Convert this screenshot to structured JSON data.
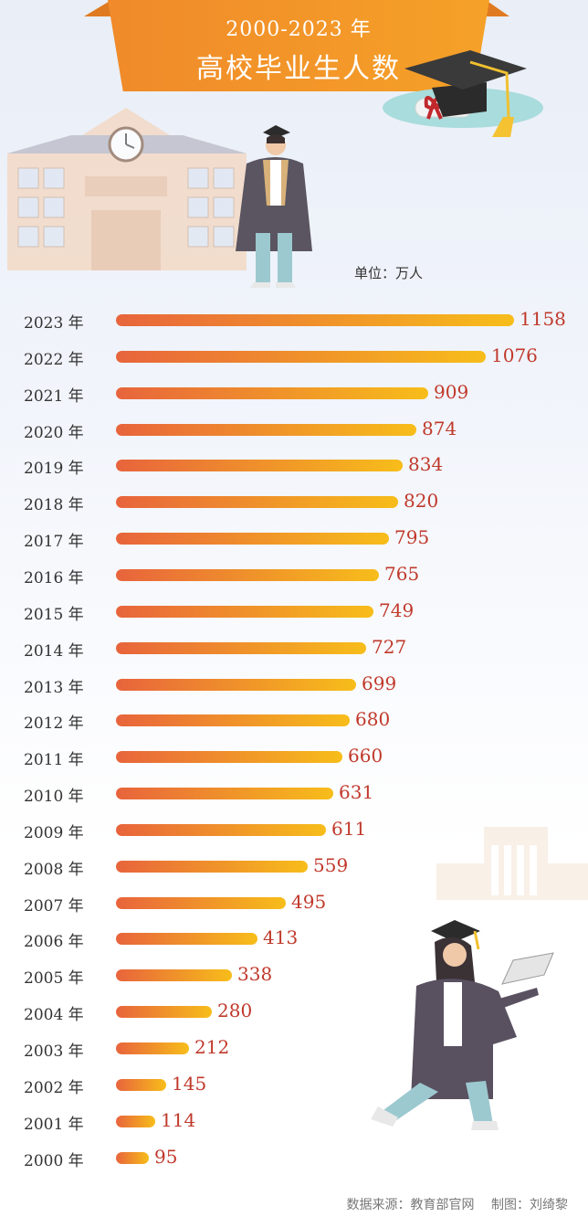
{
  "title": {
    "years": "2000-2023 年",
    "main": "高校毕业生人数"
  },
  "unit": "单位：万人",
  "source": {
    "data_source": "数据来源：教育部官网",
    "made_by": "制图：刘绮黎"
  },
  "colors": {
    "banner": "#f08a2a",
    "bar_start": "#e8643c",
    "bar_end": "#f7bd1a",
    "value_text": "#c0392b"
  },
  "chart_data": {
    "type": "bar",
    "orientation": "horizontal",
    "title": "2000-2023 年 高校毕业生人数",
    "unit": "万人",
    "categories": [
      "2023 年",
      "2022 年",
      "2021 年",
      "2020 年",
      "2019 年",
      "2018 年",
      "2017 年",
      "2016 年",
      "2015 年",
      "2014 年",
      "2013 年",
      "2012 年",
      "2011 年",
      "2010 年",
      "2009 年",
      "2008 年",
      "2007 年",
      "2006 年",
      "2005 年",
      "2004 年",
      "2003 年",
      "2002 年",
      "2001 年",
      "2000 年"
    ],
    "values": [
      1158,
      1076,
      909,
      874,
      834,
      820,
      795,
      765,
      749,
      727,
      699,
      680,
      660,
      631,
      611,
      559,
      495,
      413,
      338,
      280,
      212,
      145,
      114,
      95
    ],
    "grid": false,
    "legend": "none"
  }
}
